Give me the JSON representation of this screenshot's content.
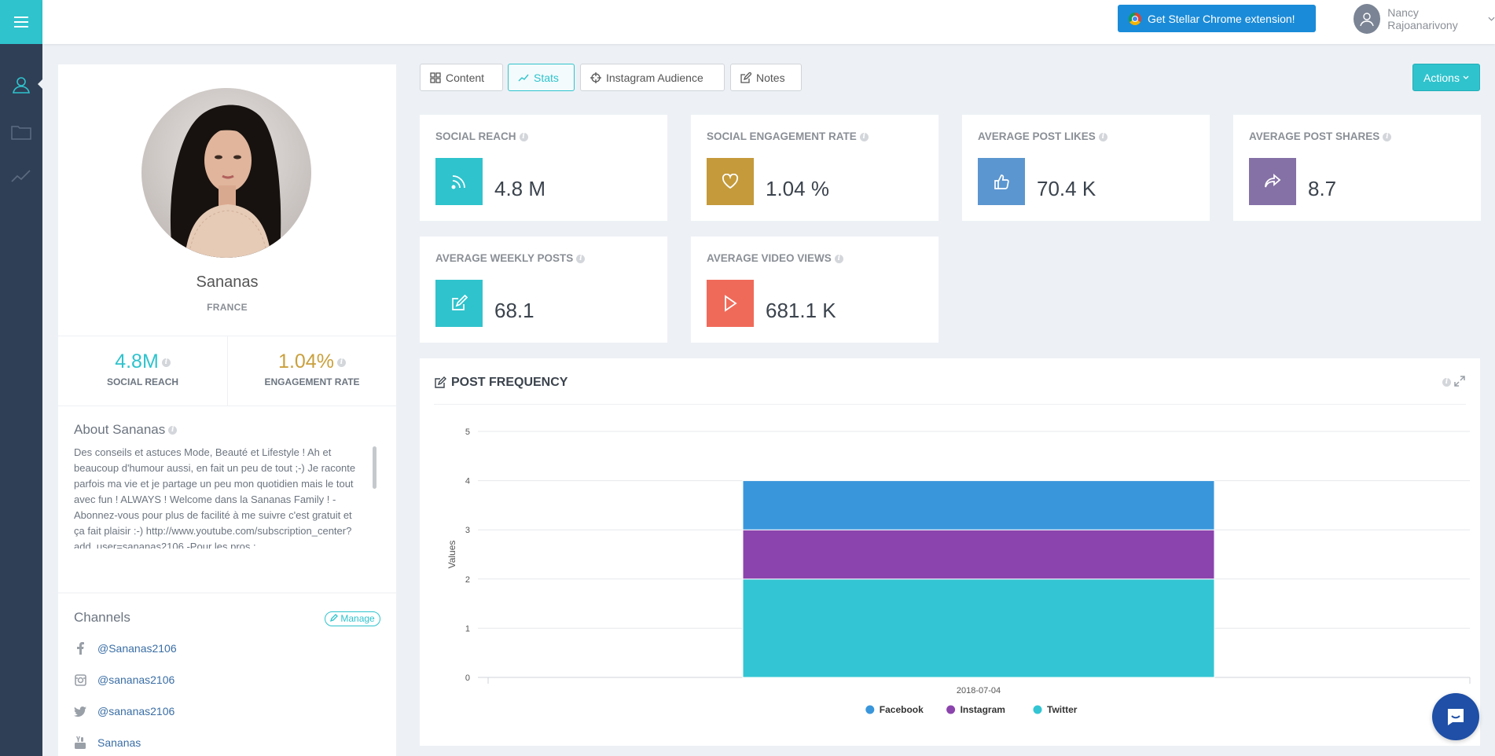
{
  "topbar": {
    "chrome_button_label": "Get Stellar Chrome extension!",
    "user_name": "Nancy Rajoanarivony"
  },
  "profile": {
    "name": "Sananas",
    "country": "FRANCE",
    "social_reach_value": "4.8M",
    "social_reach_label": "SOCIAL REACH",
    "engagement_value": "1.04%",
    "engagement_label": "ENGAGEMENT RATE",
    "about_title": "About Sananas",
    "about_text": "Des conseils et astuces Mode, Beauté et Lifestyle ! Ah et beaucoup d'humour aussi, en fait un peu de tout ;-) Je raconte parfois ma vie et je partage un peu mon quotidien mais le tout avec fun ! ALWAYS ! Welcome dans la Sananas Family ! -Abonnez-vous pour plus de facilité à me suivre c'est gratuit et ça fait plaisir :-) http://www.youtube.com/subscription_center?add_user=sananas2106 -Pour les pros : sananas.pro@gmail.com",
    "channels_title": "Channels",
    "manage_label": "Manage",
    "channels": [
      {
        "network": "facebook",
        "icon": "facebook-icon",
        "handle": "@Sananas2106"
      },
      {
        "network": "instagram",
        "icon": "instagram-icon",
        "handle": "@sananas2106"
      },
      {
        "network": "twitter",
        "icon": "twitter-icon",
        "handle": "@sananas2106"
      },
      {
        "network": "youtube",
        "icon": "youtube-icon",
        "handle": "Sananas"
      }
    ],
    "colors": {
      "reach": "#2fc3cd",
      "engagement": "#c9a03c"
    }
  },
  "tabs": [
    {
      "label": "Content",
      "active": false,
      "icon": "grid-icon"
    },
    {
      "label": "Stats",
      "active": true,
      "icon": "trend-icon"
    },
    {
      "label": "Instagram Audience",
      "active": false,
      "icon": "crosshair-icon"
    },
    {
      "label": "Notes",
      "active": false,
      "icon": "edit-icon"
    }
  ],
  "actions_label": "Actions",
  "stats": [
    {
      "title": "SOCIAL REACH",
      "value": "4.8 M",
      "icon": "rss-icon",
      "color": "#2fc3cd"
    },
    {
      "title": "SOCIAL ENGAGEMENT RATE",
      "value": "1.04 %",
      "icon": "heart-icon",
      "color": "#c49a3b"
    },
    {
      "title": "AVERAGE POST LIKES",
      "value": "70.4 K",
      "icon": "thumbs-up-icon",
      "color": "#5b96d0"
    },
    {
      "title": "AVERAGE POST SHARES",
      "value": "8.7",
      "icon": "share-icon",
      "color": "#8571a6"
    },
    {
      "title": "AVERAGE WEEKLY POSTS",
      "value": "68.1",
      "icon": "edit-icon",
      "color": "#2fc3cd"
    },
    {
      "title": "AVERAGE VIDEO VIEWS",
      "value": "681.1 K",
      "icon": "play-icon",
      "color": "#f06a5a"
    }
  ],
  "chart_panel": {
    "title": "POST FREQUENCY"
  },
  "chart_data": {
    "type": "bar",
    "stacked": true,
    "categories": [
      "2018-07-04"
    ],
    "series": [
      {
        "name": "Twitter",
        "values": [
          2
        ],
        "color": "#33c5d3"
      },
      {
        "name": "Instagram",
        "values": [
          1
        ],
        "color": "#8b44ad"
      },
      {
        "name": "Facebook",
        "values": [
          1
        ],
        "color": "#3a96db"
      }
    ],
    "legend_order": [
      "Facebook",
      "Instagram",
      "Twitter"
    ],
    "ylabel": "Values",
    "ylim": [
      0,
      5
    ],
    "yticks": [
      0,
      1,
      2,
      3,
      4,
      5
    ],
    "grid": true,
    "legend": "bottom-center"
  }
}
